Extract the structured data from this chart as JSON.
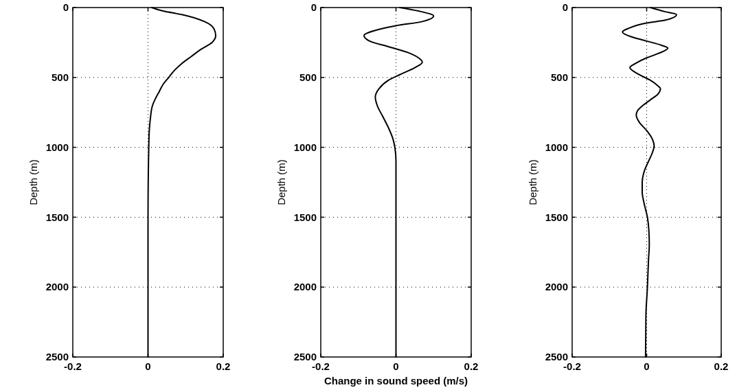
{
  "chart_data": [
    {
      "type": "line",
      "ylabel": "Depth (m)",
      "xlim": [
        -0.2,
        0.2
      ],
      "xticks": [
        -0.2,
        0,
        0.2
      ],
      "ylim": [
        2500,
        0
      ],
      "yticks": [
        0,
        500,
        1000,
        1500,
        2000,
        2500
      ],
      "grid": true,
      "line_style": "solid",
      "series": [
        {
          "color": "#000000",
          "x": [
            0.01,
            0.04,
            0.09,
            0.15,
            0.175,
            0.18,
            0.17,
            0.14,
            0.115,
            0.09,
            0.07,
            0.055,
            0.04,
            0.03,
            0.02,
            0.012,
            0.006,
            0.003,
            0.002,
            0,
            0
          ],
          "values": [
            0,
            25,
            50,
            100,
            150,
            200,
            250,
            300,
            350,
            400,
            450,
            500,
            550,
            600,
            650,
            700,
            800,
            900,
            1000,
            1500,
            2500
          ]
        }
      ]
    },
    {
      "type": "line",
      "ylabel": "Depth (m)",
      "xlabel": "Change in sound speed (m/s)",
      "xlim": [
        -0.2,
        0.2
      ],
      "xticks": [
        -0.2,
        0,
        0.2
      ],
      "ylim": [
        2500,
        0
      ],
      "yticks": [
        0,
        500,
        1000,
        1500,
        2000,
        2500
      ],
      "grid": true,
      "line_style": "solid",
      "series": [
        {
          "color": "#000000",
          "x": [
            0.01,
            0.06,
            0.1,
            0.07,
            0,
            -0.05,
            -0.085,
            -0.07,
            -0.02,
            0.03,
            0.06,
            0.07,
            0.05,
            0.01,
            -0.02,
            -0.045,
            -0.055,
            -0.05,
            -0.035,
            -0.02,
            -0.008,
            -0.003,
            0,
            0
          ],
          "values": [
            0,
            25,
            60,
            100,
            130,
            160,
            200,
            240,
            280,
            320,
            360,
            390,
            430,
            480,
            520,
            580,
            640,
            700,
            780,
            860,
            940,
            1000,
            1100,
            2500
          ]
        }
      ]
    },
    {
      "type": "line",
      "ylabel": "Depth (m)",
      "xlim": [
        -0.2,
        0.2
      ],
      "xticks": [
        -0.2,
        0,
        0.2
      ],
      "ylim": [
        2500,
        0
      ],
      "yticks": [
        0,
        500,
        1000,
        1500,
        2000,
        2500
      ],
      "grid": true,
      "line_style": "solid",
      "series": [
        {
          "color": "#000000",
          "x": [
            0.01,
            0.05,
            0.08,
            0.05,
            0,
            -0.05,
            -0.065,
            -0.04,
            0,
            0.04,
            0.057,
            0.03,
            0,
            -0.03,
            -0.045,
            -0.02,
            0.01,
            0.03,
            0.037,
            0.03,
            0.01,
            -0.01,
            -0.025,
            -0.028,
            -0.02,
            0,
            0.015,
            0.02,
            0.015,
            0.005,
            -0.005,
            -0.012,
            -0.012,
            -0.007,
            0.002,
            0.006,
            0.007,
            0.005,
            0.002,
            -0.002,
            -0.003
          ],
          "values": [
            0,
            30,
            50,
            90,
            110,
            150,
            175,
            210,
            240,
            270,
            290,
            330,
            360,
            400,
            430,
            480,
            520,
            560,
            580,
            620,
            660,
            700,
            740,
            770,
            820,
            880,
            940,
            990,
            1040,
            1100,
            1160,
            1250,
            1320,
            1400,
            1500,
            1600,
            1700,
            1800,
            2000,
            2200,
            2500
          ]
        }
      ]
    }
  ]
}
